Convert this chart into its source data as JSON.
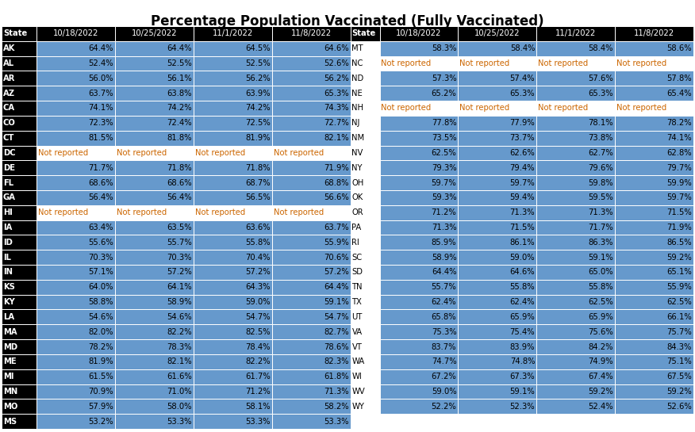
{
  "title": "Percentage Population Vaccinated (Fully Vaccinated)",
  "headers_left": [
    "State",
    "10/18/2022",
    "10/25/2022",
    "11/1/2022",
    "11/8/2022",
    "State"
  ],
  "headers_right": [
    "10/18/2022",
    "10/25/2022",
    "11/1/2022",
    "11/8/2022"
  ],
  "left_data": [
    [
      "AK",
      "64.4%",
      "64.4%",
      "64.5%",
      "64.6%",
      "MT"
    ],
    [
      "AL",
      "52.4%",
      "52.5%",
      "52.5%",
      "52.6%",
      "NC"
    ],
    [
      "AR",
      "56.0%",
      "56.1%",
      "56.2%",
      "56.2%",
      "ND"
    ],
    [
      "AZ",
      "63.7%",
      "63.8%",
      "63.9%",
      "65.3%",
      "NE"
    ],
    [
      "CA",
      "74.1%",
      "74.2%",
      "74.2%",
      "74.3%",
      "NH"
    ],
    [
      "CO",
      "72.3%",
      "72.4%",
      "72.5%",
      "72.7%",
      "NJ"
    ],
    [
      "CT",
      "81.5%",
      "81.8%",
      "81.9%",
      "82.1%",
      "NM"
    ],
    [
      "DC",
      "Not reported",
      "Not reported",
      "Not reported",
      "Not reported",
      "NV"
    ],
    [
      "DE",
      "71.7%",
      "71.8%",
      "71.8%",
      "71.9%",
      "NY"
    ],
    [
      "FL",
      "68.6%",
      "68.6%",
      "68.7%",
      "68.8%",
      "OH"
    ],
    [
      "GA",
      "56.4%",
      "56.4%",
      "56.5%",
      "56.6%",
      "OK"
    ],
    [
      "HI",
      "Not reported",
      "Not reported",
      "Not reported",
      "Not reported",
      "OR"
    ],
    [
      "IA",
      "63.4%",
      "63.5%",
      "63.6%",
      "63.7%",
      "PA"
    ],
    [
      "ID",
      "55.6%",
      "55.7%",
      "55.8%",
      "55.9%",
      "RI"
    ],
    [
      "IL",
      "70.3%",
      "70.3%",
      "70.4%",
      "70.6%",
      "SC"
    ],
    [
      "IN",
      "57.1%",
      "57.2%",
      "57.2%",
      "57.2%",
      "SD"
    ],
    [
      "KS",
      "64.0%",
      "64.1%",
      "64.3%",
      "64.4%",
      "TN"
    ],
    [
      "KY",
      "58.8%",
      "58.9%",
      "59.0%",
      "59.1%",
      "TX"
    ],
    [
      "LA",
      "54.6%",
      "54.6%",
      "54.7%",
      "54.7%",
      "UT"
    ],
    [
      "MA",
      "82.0%",
      "82.2%",
      "82.5%",
      "82.7%",
      "VA"
    ],
    [
      "MD",
      "78.2%",
      "78.3%",
      "78.4%",
      "78.6%",
      "VT"
    ],
    [
      "ME",
      "81.9%",
      "82.1%",
      "82.2%",
      "82.3%",
      "WA"
    ],
    [
      "MI",
      "61.5%",
      "61.6%",
      "61.7%",
      "61.8%",
      "WI"
    ],
    [
      "MN",
      "70.9%",
      "71.0%",
      "71.2%",
      "71.3%",
      "WV"
    ],
    [
      "MO",
      "57.9%",
      "58.0%",
      "58.1%",
      "58.2%",
      "WY"
    ],
    [
      "MS",
      "53.2%",
      "53.3%",
      "53.3%",
      "53.3%",
      ""
    ]
  ],
  "right_data": [
    [
      "58.3%",
      "58.4%",
      "58.4%",
      "58.6%"
    ],
    [
      "Not reported",
      "Not reported",
      "Not reported",
      "Not reported"
    ],
    [
      "57.3%",
      "57.4%",
      "57.6%",
      "57.8%"
    ],
    [
      "65.2%",
      "65.3%",
      "65.3%",
      "65.4%"
    ],
    [
      "Not reported",
      "Not reported",
      "Not reported",
      "Not reported"
    ],
    [
      "77.8%",
      "77.9%",
      "78.1%",
      "78.2%"
    ],
    [
      "73.5%",
      "73.7%",
      "73.8%",
      "74.1%"
    ],
    [
      "62.5%",
      "62.6%",
      "62.7%",
      "62.8%"
    ],
    [
      "79.3%",
      "79.4%",
      "79.6%",
      "79.7%"
    ],
    [
      "59.7%",
      "59.7%",
      "59.8%",
      "59.9%"
    ],
    [
      "59.3%",
      "59.4%",
      "59.5%",
      "59.7%"
    ],
    [
      "71.2%",
      "71.3%",
      "71.3%",
      "71.5%"
    ],
    [
      "71.3%",
      "71.5%",
      "71.7%",
      "71.9%"
    ],
    [
      "85.9%",
      "86.1%",
      "86.3%",
      "86.5%"
    ],
    [
      "58.9%",
      "59.0%",
      "59.1%",
      "59.2%"
    ],
    [
      "64.4%",
      "64.6%",
      "65.0%",
      "65.1%"
    ],
    [
      "55.7%",
      "55.8%",
      "55.8%",
      "55.9%"
    ],
    [
      "62.4%",
      "62.4%",
      "62.5%",
      "62.5%"
    ],
    [
      "65.8%",
      "65.9%",
      "65.9%",
      "66.1%"
    ],
    [
      "75.3%",
      "75.4%",
      "75.6%",
      "75.7%"
    ],
    [
      "83.7%",
      "83.9%",
      "84.2%",
      "84.3%"
    ],
    [
      "74.7%",
      "74.8%",
      "74.9%",
      "75.1%"
    ],
    [
      "67.2%",
      "67.3%",
      "67.4%",
      "67.5%"
    ],
    [
      "59.0%",
      "59.1%",
      "59.2%",
      "59.2%"
    ],
    [
      "52.2%",
      "52.3%",
      "52.4%",
      "52.6%"
    ],
    [
      "",
      "",
      "",
      ""
    ]
  ],
  "header_bg": "#000000",
  "header_fg": "#ffffff",
  "state_col_bg": "#000000",
  "state_col_fg": "#ffffff",
  "data_bg": "#6699CC",
  "data_fg": "#000000",
  "not_reported_bg": "#ffffff",
  "not_reported_fg": "#000000",
  "nr_text_color": "#CC6600",
  "title_fontsize": 12,
  "cell_fontsize": 7.2
}
